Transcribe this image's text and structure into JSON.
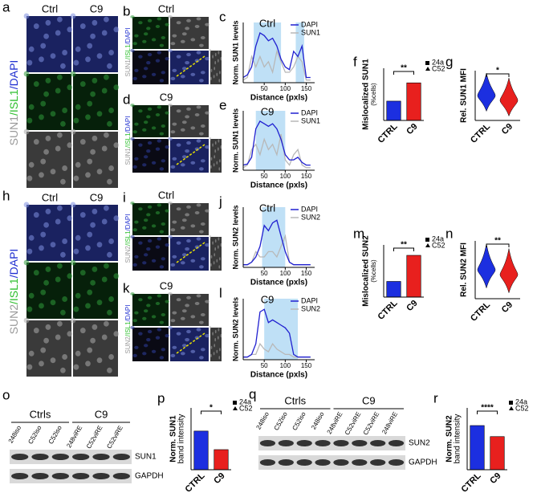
{
  "panels": {
    "a": {
      "letter": "a",
      "columns": [
        "Ctrl",
        "C9"
      ],
      "label": [
        "SUN1",
        "/ISL1",
        "/DAPI"
      ]
    },
    "b": {
      "letter": "b",
      "title": "Ctrl",
      "label": [
        "SUN1",
        "/ISL1",
        "/DAPI"
      ]
    },
    "c": {
      "letter": "c",
      "title": "Ctrl",
      "ylabel": "Norm. SUN1 levels",
      "xlabel": "Distance (pxls)",
      "xlim": [
        0,
        170
      ],
      "ylim": [
        0,
        1.15
      ],
      "xticks": [
        50,
        100,
        150
      ],
      "shaded": [
        [
          25,
          90
        ],
        [
          125,
          145
        ]
      ],
      "x": [
        0,
        10,
        20,
        30,
        40,
        50,
        60,
        70,
        80,
        90,
        100,
        110,
        120,
        130,
        140,
        150,
        160
      ],
      "series": [
        {
          "name": "DAPI",
          "color": "#2020d0",
          "values": [
            0.1,
            0.15,
            0.3,
            0.7,
            0.95,
            0.9,
            0.8,
            0.85,
            0.7,
            0.45,
            0.3,
            0.25,
            0.6,
            0.5,
            0.7,
            0.1,
            0.1
          ]
        },
        {
          "name": "SUN1",
          "color": "#b8b8b8",
          "values": [
            0.05,
            0.1,
            0.5,
            0.3,
            0.5,
            0.3,
            0.4,
            0.2,
            0.6,
            0.4,
            0.2,
            0.2,
            0.3,
            0.5,
            0.4,
            0.05,
            0.05
          ]
        }
      ]
    },
    "d": {
      "letter": "d",
      "title": "C9",
      "label": [
        "SUN1",
        "/ISL1",
        "/DAPI"
      ]
    },
    "e": {
      "letter": "e",
      "title": "C9",
      "ylabel": "Norm. SUN1 levels",
      "xlabel": "Distance (pxls)",
      "xlim": [
        0,
        170
      ],
      "ylim": [
        0,
        1.15
      ],
      "xticks": [
        50,
        100,
        150
      ],
      "shaded": [
        [
          30,
          100
        ]
      ],
      "x": [
        0,
        10,
        20,
        30,
        40,
        50,
        60,
        70,
        80,
        90,
        100,
        110,
        120,
        130,
        140,
        150,
        160
      ],
      "series": [
        {
          "name": "DAPI",
          "color": "#2020d0",
          "values": [
            0.1,
            0.12,
            0.25,
            0.8,
            0.95,
            0.9,
            0.85,
            0.9,
            0.8,
            0.6,
            0.3,
            0.2,
            0.2,
            0.25,
            0.15,
            0.1,
            0.1
          ]
        },
        {
          "name": "SUN1",
          "color": "#b8b8b8",
          "values": [
            0.05,
            0.1,
            0.4,
            0.5,
            0.3,
            0.6,
            0.4,
            0.5,
            0.3,
            0.7,
            0.2,
            0.1,
            0.3,
            0.4,
            0.1,
            0.05,
            0.05
          ]
        }
      ]
    },
    "f": {
      "letter": "f",
      "ylabel": [
        "Mislocalized SUN1",
        "(%cells)"
      ],
      "categories": [
        "CTRL",
        "C9"
      ],
      "values": [
        37,
        72
      ],
      "colors": [
        "#1c2fe0",
        "#e8201e"
      ],
      "ylim": [
        0,
        100
      ],
      "sig": "**",
      "legend": [
        "24a",
        "C52"
      ]
    },
    "g": {
      "letter": "g",
      "ylabel": "Rel. SUN1 MFI",
      "categories": [
        "CTRL",
        "C9"
      ],
      "colors": [
        "#1c2fe0",
        "#e8201e"
      ],
      "sig": "*"
    },
    "h": {
      "letter": "h",
      "columns": [
        "Ctrl",
        "C9"
      ],
      "label": [
        "SUN2",
        "/ISL1",
        "/DAPI"
      ]
    },
    "i": {
      "letter": "i",
      "title": "Ctrl",
      "label": [
        "SUN2",
        "/ISL1",
        "/DAPI"
      ]
    },
    "j": {
      "letter": "j",
      "title": "Ctrl",
      "ylabel": "Norm. SUN2 levels",
      "xlabel": "Distance (pxls)",
      "xlim": [
        0,
        170
      ],
      "ylim": [
        0,
        1.15
      ],
      "xticks": [
        50,
        100,
        150
      ],
      "shaded": [
        [
          45,
          100
        ]
      ],
      "x": [
        0,
        10,
        20,
        30,
        40,
        50,
        60,
        70,
        80,
        90,
        100,
        110,
        120,
        130,
        140,
        150,
        160
      ],
      "series": [
        {
          "name": "DAPI",
          "color": "#2020d0",
          "values": [
            0.05,
            0.05,
            0.1,
            0.2,
            0.4,
            0.8,
            0.7,
            0.85,
            0.9,
            0.6,
            0.3,
            0.1,
            0.05,
            0.05,
            0.05,
            0.05,
            0.05
          ]
        },
        {
          "name": "SUN2",
          "color": "#b8b8b8",
          "values": [
            0.05,
            0.05,
            0.1,
            0.3,
            0.2,
            0.2,
            0.3,
            0.3,
            0.2,
            0.4,
            0.6,
            0.1,
            0.05,
            0.05,
            0.05,
            0.05,
            0.05
          ]
        }
      ]
    },
    "k": {
      "letter": "k",
      "title": "C9",
      "label": [
        "SUN2",
        "/ISL1",
        "/DAPI"
      ]
    },
    "l": {
      "letter": "l",
      "title": "C9",
      "ylabel": "Norm. SUN2 levels",
      "xlabel": "Distance (pxls)",
      "xlim": [
        0,
        170
      ],
      "ylim": [
        0,
        1.15
      ],
      "xticks": [
        50,
        100,
        150
      ],
      "shaded": [
        [
          50,
          130
        ]
      ],
      "x": [
        0,
        10,
        20,
        30,
        40,
        50,
        60,
        70,
        80,
        90,
        100,
        110,
        120,
        130,
        140,
        150,
        160
      ],
      "series": [
        {
          "name": "DAPI",
          "color": "#2020d0",
          "values": [
            0.05,
            0.05,
            0.1,
            0.3,
            0.9,
            0.95,
            0.7,
            0.75,
            0.7,
            0.65,
            0.6,
            0.5,
            0.1,
            0.05,
            0.05,
            0.05,
            0.05
          ]
        },
        {
          "name": "SUN2",
          "color": "#b8b8b8",
          "values": [
            0.05,
            0.05,
            0.1,
            0.1,
            0.3,
            0.2,
            0.15,
            0.3,
            0.2,
            0.15,
            0.1,
            0.1,
            0.05,
            0.05,
            0.05,
            0.05,
            0.05
          ]
        }
      ]
    },
    "m": {
      "letter": "m",
      "ylabel": [
        "Mislocalized SUN2",
        "(%cells)"
      ],
      "categories": [
        "CTRL",
        "C9"
      ],
      "values": [
        18,
        48
      ],
      "colors": [
        "#1c2fe0",
        "#e8201e"
      ],
      "ylim": [
        0,
        60
      ],
      "sig": "**",
      "legend": [
        "24a",
        "C52"
      ]
    },
    "n": {
      "letter": "n",
      "ylabel": "Rel. SUN2 MFI",
      "categories": [
        "CTRL",
        "C9"
      ],
      "colors": [
        "#1c2fe0",
        "#e8201e"
      ],
      "sig": "**"
    },
    "o": {
      "letter": "o",
      "groups": [
        "Ctrls",
        "C9"
      ],
      "lanes": [
        "248iso",
        "C52iso",
        "C52iso",
        "248viRE",
        "C52viRE",
        "C52viRE"
      ],
      "bands": [
        "SUN1",
        "GAPDH"
      ]
    },
    "p": {
      "letter": "p",
      "ylabel": [
        "Norm. SUN1",
        "band intensity"
      ],
      "categories": [
        "CTRL",
        "C9"
      ],
      "values": [
        1.0,
        0.52
      ],
      "colors": [
        "#1c2fe0",
        "#e8201e"
      ],
      "ylim": [
        0,
        1.6
      ],
      "sig": "*",
      "legend": [
        "24a",
        "C52"
      ]
    },
    "q": {
      "letter": "q",
      "groups": [
        "Ctrls",
        "C9"
      ],
      "lanes": [
        "248iso",
        "C52iso",
        "C52iso",
        "248iso",
        "248viRE",
        "C52viRE",
        "C52viRE",
        "248viRE"
      ],
      "bands": [
        "SUN2",
        "GAPDH"
      ]
    },
    "r": {
      "letter": "r",
      "ylabel": [
        "Norm. SUN2",
        "band intensity"
      ],
      "categories": [
        "CTRL",
        "C9"
      ],
      "values": [
        1.0,
        0.75
      ],
      "colors": [
        "#1c2fe0",
        "#e8201e"
      ],
      "ylim": [
        0,
        1.4
      ],
      "sig": "****",
      "legend": [
        "24a",
        "C52"
      ]
    }
  }
}
